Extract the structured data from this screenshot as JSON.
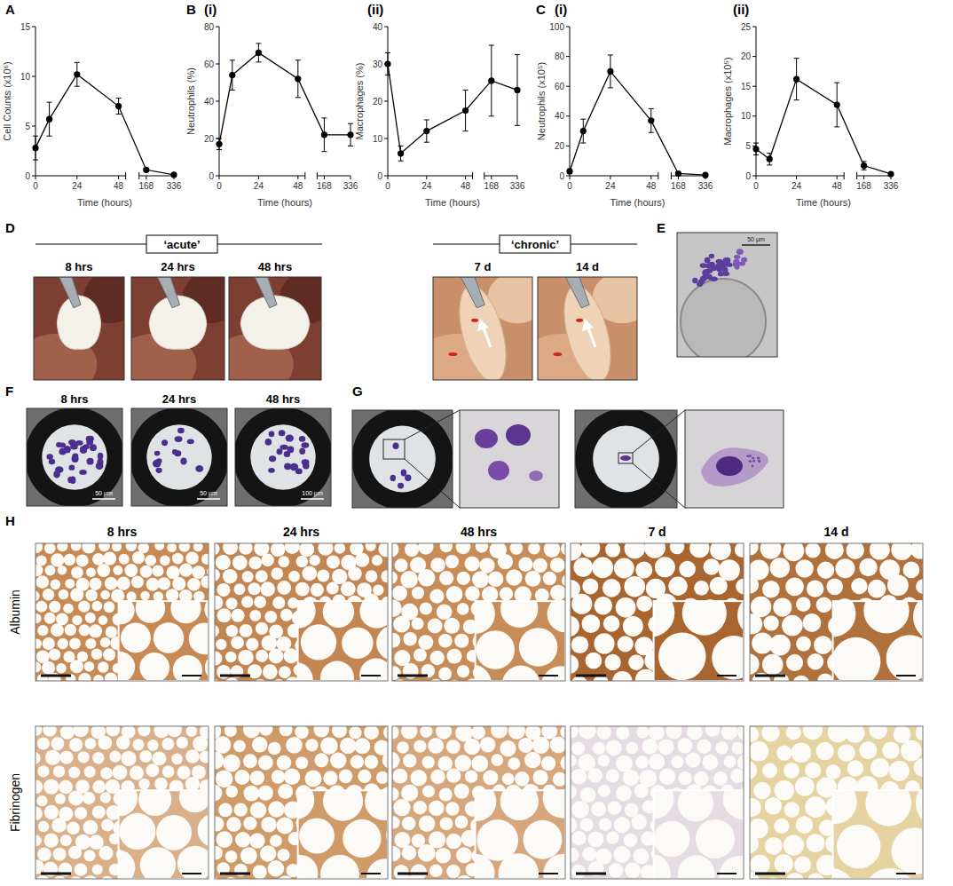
{
  "chart_data": [
    {
      "type": "line",
      "title": "A",
      "x": [
        0,
        8,
        24,
        48,
        168,
        336
      ],
      "values": [
        2.8,
        5.7,
        10.2,
        7,
        0.6,
        0.1
      ],
      "errors": [
        1.2,
        1.7,
        1.2,
        0.8,
        0.15,
        0.05
      ],
      "xlim": [
        0,
        336
      ],
      "xticks": [
        0,
        24,
        48,
        168,
        336
      ],
      "ylim": [
        0,
        15
      ],
      "yticks": [
        0,
        5,
        10,
        15
      ],
      "x_label": "Time (hours)",
      "y_label": "Cell Counts (x10⁶)",
      "color": "#000000",
      "marker": "circle"
    },
    {
      "type": "line",
      "title": "B",
      "subtitle": "(i)",
      "x": [
        0,
        8,
        24,
        48,
        168,
        336
      ],
      "values": [
        17,
        54,
        66,
        52,
        22,
        22
      ],
      "errors": [
        3,
        8,
        5,
        10,
        9,
        6
      ],
      "xlim": [
        0,
        336
      ],
      "xticks": [
        0,
        24,
        48,
        168,
        336
      ],
      "ylim": [
        0,
        80
      ],
      "yticks": [
        0,
        20,
        40,
        60,
        80
      ],
      "x_label": "Time (hours)",
      "y_label": "Neutrophils (%)",
      "color": "#000000",
      "marker": "circle"
    },
    {
      "type": "line",
      "subtitle": "(ii)",
      "x": [
        0,
        8,
        24,
        48,
        168,
        336
      ],
      "values": [
        30,
        6,
        12,
        17.5,
        25.5,
        23
      ],
      "errors": [
        3,
        2,
        3,
        5.5,
        9.5,
        9.5
      ],
      "xlim": [
        0,
        336
      ],
      "xticks": [
        0,
        24,
        48,
        168,
        336
      ],
      "ylim": [
        0,
        40
      ],
      "yticks": [
        0,
        10,
        20,
        30,
        40
      ],
      "x_label": "Time (hours)",
      "y_label": "Macrophages (%)",
      "color": "#000000",
      "marker": "circle"
    },
    {
      "type": "line",
      "title": "C",
      "subtitle": "(i)",
      "x": [
        0,
        8,
        24,
        48,
        168,
        336
      ],
      "values": [
        3,
        30,
        70,
        37,
        1.5,
        0.5
      ],
      "errors": [
        1.5,
        8,
        11,
        8,
        1,
        0.3
      ],
      "xlim": [
        0,
        336
      ],
      "xticks": [
        0,
        24,
        48,
        168,
        336
      ],
      "ylim": [
        0,
        100
      ],
      "yticks": [
        0,
        20,
        40,
        60,
        80,
        100
      ],
      "x_label": "Time (hours)",
      "y_label": "Neutrophils (x10⁵)",
      "color": "#000000",
      "marker": "circle"
    },
    {
      "type": "line",
      "subtitle": "(ii)",
      "x": [
        0,
        8,
        24,
        48,
        168,
        336
      ],
      "values": [
        4.5,
        2.8,
        16.2,
        11.9,
        1.7,
        0.3
      ],
      "errors": [
        1,
        1,
        3.5,
        3.7,
        0.7,
        0.2
      ],
      "xlim": [
        0,
        336
      ],
      "xticks": [
        0,
        24,
        48,
        168,
        336
      ],
      "ylim": [
        0,
        25
      ],
      "yticks": [
        0,
        5,
        10,
        15,
        20,
        25
      ],
      "x_label": "Time (hours)",
      "y_label": "Macrophages (x10⁵)",
      "color": "#000000",
      "marker": "circle"
    }
  ],
  "panels": {
    "D": {
      "label": "D",
      "groups": [
        {
          "label": "‘acute’",
          "images": [
            "8 hrs",
            "24 hrs",
            "48 hrs"
          ]
        },
        {
          "label": "‘chronic’",
          "images": [
            "7 d",
            "14 d"
          ]
        }
      ]
    },
    "E": {
      "label": "E",
      "scale_bar": "50 µm"
    },
    "F": {
      "label": "F",
      "images": [
        {
          "label": "8 hrs",
          "scale_bar": "50 µm"
        },
        {
          "label": "24 hrs",
          "scale_bar": "50 µm"
        },
        {
          "label": "48 hrs",
          "scale_bar": "100 µm"
        }
      ]
    },
    "G": {
      "label": "G"
    },
    "H": {
      "label": "H",
      "columns": [
        "8 hrs",
        "24 hrs",
        "48 hrs",
        "7 d",
        "14 d"
      ],
      "rows": [
        "Albumin",
        "Fibrinogen"
      ]
    }
  }
}
